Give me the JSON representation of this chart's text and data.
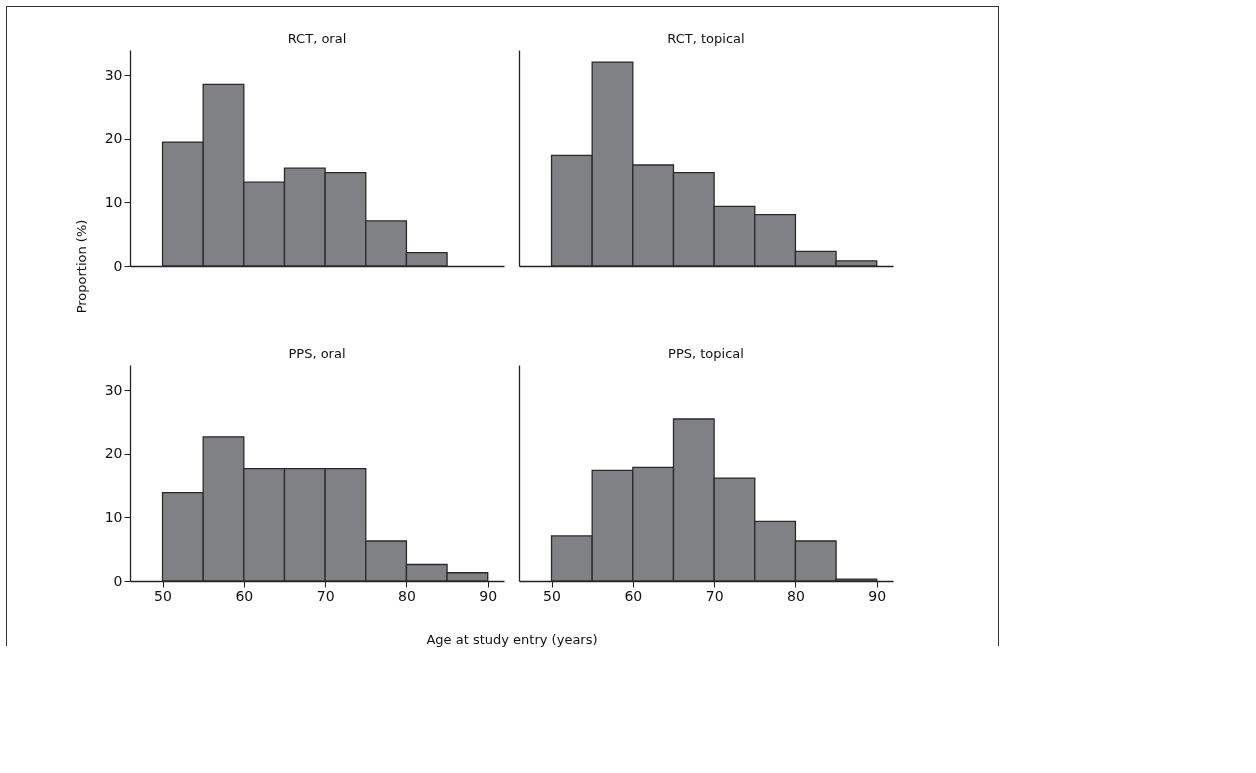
{
  "chart_data": [
    {
      "type": "histogram",
      "title": "RCT, oral",
      "ylabel": "Proportion (%)",
      "bins": [
        50,
        55,
        60,
        65,
        70,
        75,
        80,
        85
      ],
      "values": [
        19.5,
        28.6,
        13.2,
        15.4,
        14.7,
        7.1,
        2.1
      ],
      "color": "#808184",
      "xlim": [
        46,
        92
      ],
      "xticks": [
        50,
        60,
        70,
        80,
        90
      ],
      "ylim": [
        0,
        34
      ],
      "yticks": [
        0,
        10,
        20,
        30
      ],
      "tick_labels": "y"
    },
    {
      "type": "histogram",
      "title": "RCT, topical",
      "bins": [
        50,
        55,
        60,
        65,
        70,
        75,
        80,
        85,
        90
      ],
      "values": [
        17.4,
        32.1,
        15.9,
        14.7,
        9.4,
        8.1,
        2.3,
        0.8
      ],
      "color": "#808184",
      "xlim": [
        46,
        92
      ],
      "xticks": [
        50,
        60,
        70,
        80,
        90
      ],
      "ylim": [
        0,
        34
      ],
      "yticks": [
        0,
        10,
        20,
        30
      ],
      "tick_labels": false
    },
    {
      "type": "histogram",
      "title": "PPS, oral",
      "xlabel": "Age at study entry (years)",
      "bins": [
        50,
        55,
        60,
        65,
        70,
        75,
        80,
        85,
        90
      ],
      "values": [
        13.9,
        22.7,
        17.7,
        17.7,
        17.7,
        6.3,
        2.6,
        1.3
      ],
      "color": "#808184",
      "xlim": [
        46,
        92
      ],
      "xticks": [
        50,
        60,
        70,
        80,
        90
      ],
      "ylim": [
        0,
        34
      ],
      "yticks": [
        0,
        10,
        20,
        30
      ]
    },
    {
      "type": "histogram",
      "title": "PPS, topical",
      "bins": [
        50,
        55,
        60,
        65,
        70,
        75,
        80,
        85,
        90
      ],
      "values": [
        7.1,
        17.4,
        17.9,
        25.5,
        16.2,
        9.4,
        6.3,
        0.3
      ],
      "color": "#808184",
      "xlim": [
        46,
        92
      ],
      "xticks": [
        50,
        60,
        70,
        80,
        90
      ],
      "ylim": [
        0,
        34
      ],
      "yticks": [
        0,
        10,
        20,
        30
      ],
      "tick_labels": "x"
    }
  ]
}
